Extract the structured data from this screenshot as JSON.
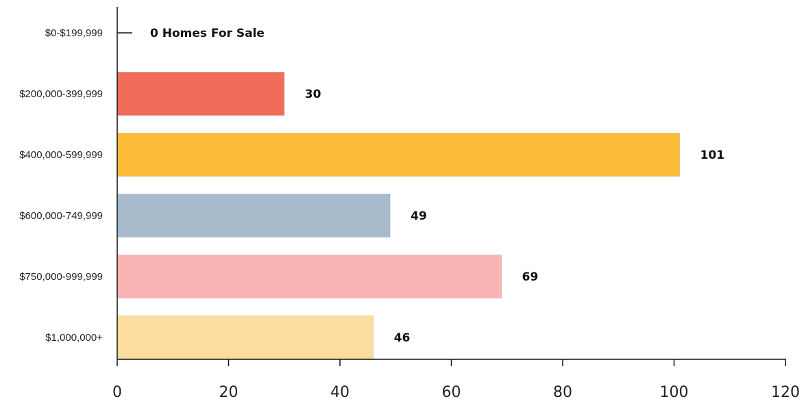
{
  "chart_data": {
    "type": "bar",
    "orientation": "horizontal",
    "categories": [
      "$0-$199,999",
      "$200,000-399,999",
      "$400,000-599,999",
      "$600,000-749,999",
      "$750,000-999,999",
      "$1,000,000+"
    ],
    "values": [
      0,
      30,
      101,
      49,
      69,
      46
    ],
    "value_labels": [
      "0 Homes For Sale",
      "30",
      "101",
      "49",
      "69",
      "46"
    ],
    "colors": [
      "#111111",
      "#f26c5a",
      "#fcbc38",
      "#a8bbcd",
      "#f8b4b2",
      "#fddd9d"
    ],
    "xlim": [
      0,
      120
    ],
    "xticks": [
      0,
      20,
      40,
      60,
      80,
      100,
      120
    ],
    "xtick_labels": [
      "0",
      "20",
      "40",
      "60",
      "80",
      "100",
      "120"
    ],
    "grid": false,
    "legend": "none"
  }
}
